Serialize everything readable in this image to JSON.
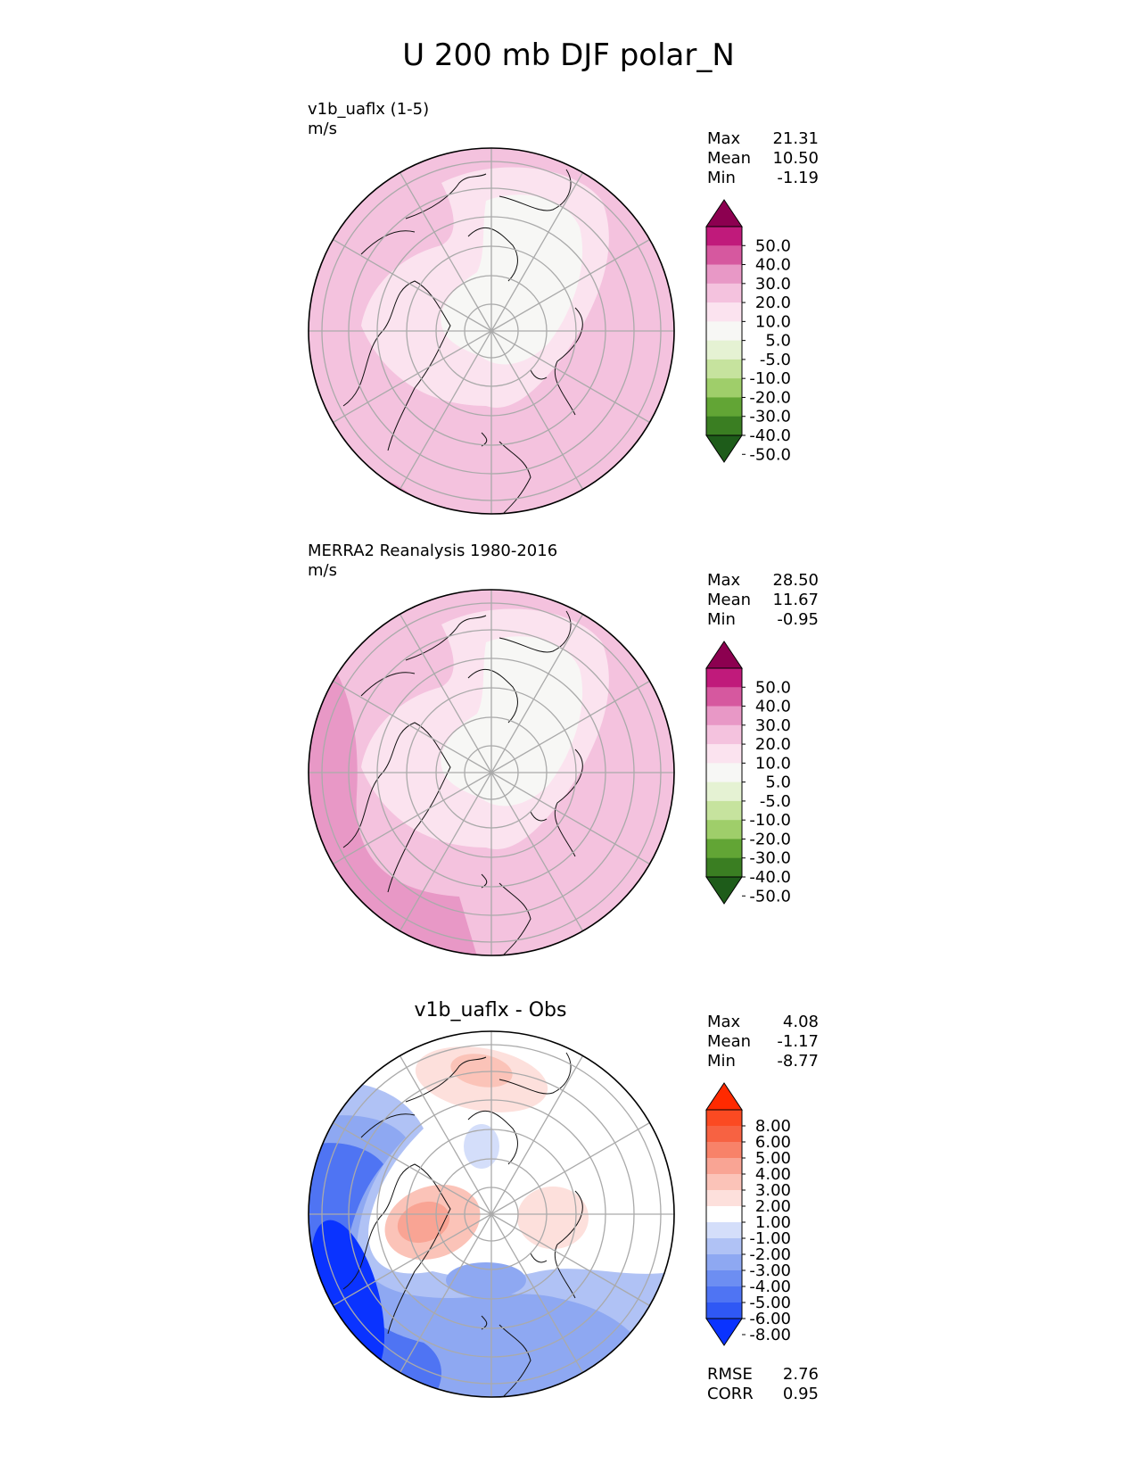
{
  "title": "U 200 mb DJF polar_N",
  "panels": [
    {
      "label_line1": "v1b_uaflx (1-5)",
      "label_line2": "m/s",
      "stats": [
        {
          "name": "Max",
          "value": "21.31"
        },
        {
          "name": "Mean",
          "value": "10.50"
        },
        {
          "name": "Min",
          "value": "-1.19"
        }
      ]
    },
    {
      "label_line1": "MERRA2 Reanalysis 1980-2016",
      "label_line2": "m/s",
      "stats": [
        {
          "name": "Max",
          "value": "28.50"
        },
        {
          "name": "Mean",
          "value": "11.67"
        },
        {
          "name": "Min",
          "value": "-0.95"
        }
      ]
    },
    {
      "label_center": "v1b_uaflx - Obs",
      "stats": [
        {
          "name": "Max",
          "value": "4.08"
        },
        {
          "name": "Mean",
          "value": "-1.17"
        },
        {
          "name": "Min",
          "value": "-8.77"
        }
      ],
      "metrics": [
        {
          "name": "RMSE",
          "value": "2.76"
        },
        {
          "name": "CORR",
          "value": "0.95"
        }
      ]
    }
  ],
  "chart_data": [
    {
      "type": "heatmap",
      "projection": "north polar stereographic",
      "variable": "U 200 mb DJF",
      "units": "m/s",
      "colorbar": {
        "ticks": [
          "50.0",
          "40.0",
          "30.0",
          "20.0",
          "10.0",
          "5.0",
          "-5.0",
          "-10.0",
          "-20.0",
          "-30.0",
          "-40.0",
          "-50.0"
        ],
        "levels": [
          -50,
          -40,
          -30,
          -20,
          -10,
          -5,
          5,
          10,
          20,
          30,
          40,
          50
        ],
        "colors": [
          "#1e5c1a",
          "#3a7e22",
          "#62a535",
          "#9fce6a",
          "#c6e39e",
          "#e5f2d3",
          "#f7f7f5",
          "#fbe3ef",
          "#f4c2de",
          "#e898c6",
          "#d6589f",
          "#c01a7b",
          "#8c0050"
        ],
        "extend": "both"
      }
    },
    {
      "type": "heatmap",
      "projection": "north polar stereographic",
      "variable": "U 200 mb DJF",
      "units": "m/s",
      "colorbar": {
        "ticks": [
          "50.0",
          "40.0",
          "30.0",
          "20.0",
          "10.0",
          "5.0",
          "-5.0",
          "-10.0",
          "-20.0",
          "-30.0",
          "-40.0",
          "-50.0"
        ],
        "levels": [
          -50,
          -40,
          -30,
          -20,
          -10,
          -5,
          5,
          10,
          20,
          30,
          40,
          50
        ],
        "colors": [
          "#1e5c1a",
          "#3a7e22",
          "#62a535",
          "#9fce6a",
          "#c6e39e",
          "#e5f2d3",
          "#f7f7f5",
          "#fbe3ef",
          "#f4c2de",
          "#e898c6",
          "#d6589f",
          "#c01a7b",
          "#8c0050"
        ],
        "extend": "both"
      }
    },
    {
      "type": "heatmap",
      "projection": "north polar stereographic",
      "variable": "difference",
      "units": "m/s",
      "colorbar": {
        "ticks": [
          "8.00",
          "6.00",
          "5.00",
          "4.00",
          "3.00",
          "2.00",
          "1.00",
          "-1.00",
          "-2.00",
          "-3.00",
          "-4.00",
          "-5.00",
          "-6.00",
          "-8.00"
        ],
        "levels": [
          -8,
          -6,
          -5,
          -4,
          -3,
          -2,
          -1,
          1,
          2,
          3,
          4,
          5,
          6,
          8
        ],
        "colors": [
          "#0a33ff",
          "#2f58f5",
          "#4f74f3",
          "#6d8ef2",
          "#8ea8f2",
          "#b0c2f5",
          "#d4defa",
          "#ffffff",
          "#fde0dc",
          "#fbc3b8",
          "#f9a494",
          "#f88269",
          "#f76242",
          "#fb4a22",
          "#ff2a00"
        ],
        "extend": "both"
      }
    }
  ]
}
